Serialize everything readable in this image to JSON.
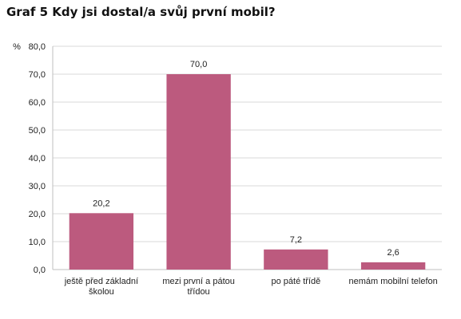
{
  "chart_data": {
    "type": "bar",
    "title": "Graf 5 Kdy jsi dostal/a svůj první mobil?",
    "ylabel": "%",
    "xlabel": "",
    "ylim": [
      0,
      80
    ],
    "yticks": [
      "0,0",
      "10,0",
      "20,0",
      "30,0",
      "40,0",
      "50,0",
      "60,0",
      "70,0",
      "80,0"
    ],
    "ytick_values": [
      0,
      10,
      20,
      30,
      40,
      50,
      60,
      70,
      80
    ],
    "grid": true,
    "legend": "none",
    "categories": [
      [
        "ještě před základní",
        "školou"
      ],
      [
        "mezi první a pátou",
        "třídou"
      ],
      [
        "po páté třídě"
      ],
      [
        "nemám mobilní telefon"
      ]
    ],
    "values": [
      20.2,
      70.0,
      7.2,
      2.6
    ],
    "data_labels": [
      "20,2",
      "70,0",
      "7,2",
      "2,6"
    ],
    "bar_color": "#bc5a7e",
    "grid_color": "#d9d9d9",
    "axis_color": "#bfbfbf"
  }
}
